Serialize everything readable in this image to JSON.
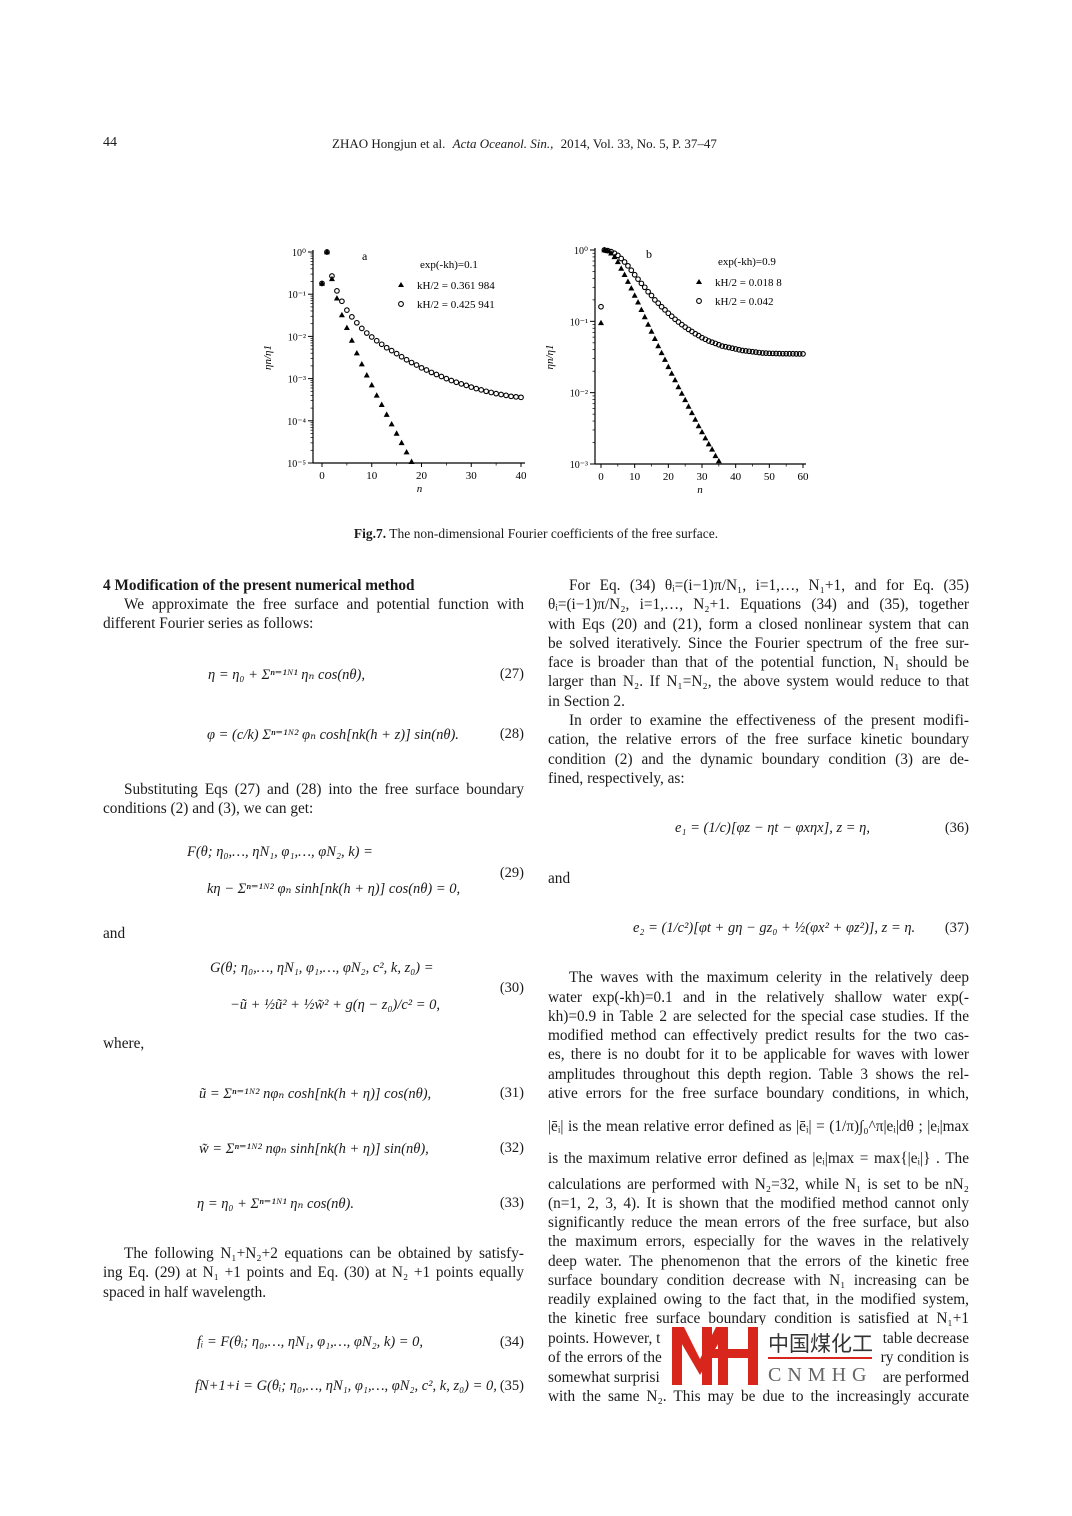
{
  "header": {
    "page_number": "44",
    "running_title": "ZHAO Hongjun et al.",
    "journal": "Acta Oceanol. Sin.,",
    "citation": "2014, Vol. 33, No. 5, P. 37–47"
  },
  "figure": {
    "label": "Fig.7.",
    "caption": "The non-dimensional Fourier coefficients of the free surface."
  },
  "chart_data": [
    {
      "type": "scatter",
      "panel_label": "a",
      "title": "exp(-kh)=0.1",
      "xlabel": "n",
      "ylabel": "ηn/η1",
      "xlim": [
        0,
        40
      ],
      "ylim": [
        1e-05,
        1
      ],
      "y_scale": "log",
      "x_ticks": [
        "0",
        "10",
        "20",
        "30",
        "40"
      ],
      "y_ticks": [
        "10⁰",
        "10⁻¹",
        "10⁻²",
        "10⁻³",
        "10⁻⁴",
        "10⁻⁵"
      ],
      "legend_placement": "top-right",
      "grid": false,
      "series": [
        {
          "name": "kH/2 = 0.361 984",
          "marker": "filled-triangle",
          "x": [
            0,
            1,
            2,
            3,
            4,
            5,
            6,
            7,
            8,
            9,
            10,
            11,
            12,
            13,
            14,
            15,
            16,
            17,
            18
          ],
          "y": [
            0.18,
            1,
            0.23,
            0.08,
            0.032,
            0.016,
            0.008,
            0.004,
            0.0022,
            0.0012,
            0.0007,
            0.0004,
            0.00024,
            0.00014,
            8.3e-05,
            5e-05,
            3e-05,
            1.8e-05,
            1.07e-05
          ]
        },
        {
          "name": "kH/2 = 0.425 941",
          "marker": "open-circle",
          "x": [
            0,
            1,
            2,
            3,
            4,
            5,
            6,
            7,
            8,
            9,
            10,
            11,
            12,
            13,
            14,
            15,
            16,
            17,
            18,
            19,
            20,
            21,
            22,
            23,
            24,
            25,
            26,
            27,
            28,
            29,
            30,
            31,
            32,
            33,
            34,
            35,
            36,
            37,
            38,
            39,
            40
          ],
          "y": [
            0.18,
            1,
            0.27,
            0.12,
            0.068,
            0.042,
            0.029,
            0.021,
            0.0155,
            0.012,
            0.0097,
            0.0079,
            0.0065,
            0.0054,
            0.0046,
            0.0039,
            0.0033,
            0.0028,
            0.0024,
            0.0021,
            0.0018,
            0.0016,
            0.0014,
            0.00125,
            0.00112,
            0.001,
            0.0009,
            0.00082,
            0.00075,
            0.00069,
            0.00063,
            0.00058,
            0.00054,
            0.0005,
            0.00047,
            0.00044,
            0.00042,
            0.0004,
            0.00038,
            0.00037,
            0.00036
          ]
        }
      ]
    },
    {
      "type": "scatter",
      "panel_label": "b",
      "title": "exp(-kh)=0.9",
      "xlabel": "n",
      "ylabel": "ηn/η1",
      "xlim": [
        0,
        60
      ],
      "ylim": [
        0.001,
        1
      ],
      "y_scale": "log",
      "x_ticks": [
        "0",
        "10",
        "20",
        "30",
        "40",
        "50",
        "60"
      ],
      "y_ticks": [
        "10⁰",
        "10⁻¹",
        "10⁻²",
        "10⁻³"
      ],
      "legend_placement": "top-right",
      "grid": false,
      "series": [
        {
          "name": "kH/2 = 0.018 8",
          "marker": "filled-triangle",
          "x": [
            0,
            1,
            2,
            3,
            4,
            5,
            6,
            7,
            8,
            9,
            10,
            11,
            12,
            13,
            14,
            15,
            16,
            17,
            18,
            19,
            20,
            21,
            22,
            23,
            24,
            25,
            26,
            27,
            28,
            29,
            30,
            31,
            32,
            33,
            34,
            35
          ],
          "y": [
            0.095,
            1,
            0.97,
            0.9,
            0.8,
            0.68,
            0.55,
            0.45,
            0.36,
            0.29,
            0.23,
            0.185,
            0.145,
            0.115,
            0.09,
            0.072,
            0.057,
            0.045,
            0.036,
            0.029,
            0.023,
            0.0185,
            0.015,
            0.012,
            0.0097,
            0.0079,
            0.0064,
            0.0052,
            0.0042,
            0.0034,
            0.0028,
            0.0023,
            0.0019,
            0.0016,
            0.0013,
            0.0011
          ]
        },
        {
          "name": "kH/2 = 0.042",
          "marker": "open-circle",
          "x": [
            0,
            1,
            2,
            3,
            4,
            5,
            6,
            7,
            8,
            9,
            10,
            11,
            12,
            13,
            14,
            15,
            16,
            17,
            18,
            19,
            20,
            21,
            22,
            23,
            24,
            25,
            26,
            27,
            28,
            29,
            30,
            31,
            32,
            33,
            34,
            35,
            36,
            37,
            38,
            39,
            40,
            41,
            42,
            43,
            44,
            45,
            46,
            47,
            48,
            49,
            50,
            51,
            52,
            53,
            54,
            55,
            56,
            57,
            58,
            59,
            60
          ],
          "y": [
            0.16,
            1,
            0.98,
            0.95,
            0.9,
            0.84,
            0.76,
            0.68,
            0.6,
            0.52,
            0.45,
            0.39,
            0.34,
            0.3,
            0.26,
            0.23,
            0.2,
            0.18,
            0.16,
            0.145,
            0.13,
            0.118,
            0.107,
            0.098,
            0.09,
            0.083,
            0.077,
            0.072,
            0.067,
            0.063,
            0.059,
            0.056,
            0.053,
            0.051,
            0.049,
            0.047,
            0.045,
            0.044,
            0.043,
            0.042,
            0.041,
            0.04,
            0.039,
            0.0385,
            0.038,
            0.0375,
            0.037,
            0.0365,
            0.036,
            0.0358,
            0.0356,
            0.0355,
            0.0354,
            0.0353,
            0.0352,
            0.0352,
            0.0351,
            0.0351,
            0.035,
            0.035,
            0.035
          ]
        }
      ]
    }
  ],
  "left_column": {
    "heading": "4  Modification of the present numerical method",
    "p1": [
      "We approximate the free surface and potential function with",
      "different Fourier series as follows:"
    ],
    "eq27": "η = η₀ + Σⁿ⁼¹ᴺ¹ ηₙ cos(nθ),",
    "eq28": "φ = (c/k) Σⁿ⁼¹ᴺ² φₙ cosh[nk(h + z)] sin(nθ).",
    "p2": [
      "Substituting Eqs (27) and (28) into the free surface boundary",
      "conditions (2) and (3), we can get:"
    ],
    "eq29a": "F(θ; η₀,…, ηN₁, φ₁,…, φN₂, k) =",
    "eq29b": "kη − Σⁿ⁼¹ᴺ² φₙ sinh[nk(h + η)] cos(nθ) = 0,",
    "and1": "and",
    "eq30a": "G(θ; η₀,…, ηN₁, φ₁,…, φN₂, c², k, z₀) =",
    "eq30b": "−ũ + ½ũ² + ½w̃² + g(η − z₀)/c² = 0,",
    "where": "where,",
    "eq31": "ũ = Σⁿ⁼¹ᴺ² nφₙ cosh[nk(h + η)] cos(nθ),",
    "eq32": "w̃ = Σⁿ⁼¹ᴺ² nφₙ sinh[nk(h + η)] sin(nθ),",
    "eq33": "η = η₀ + Σⁿ⁼¹ᴺ¹ ηₙ cos(nθ).",
    "p3": [
      "The following N₁+N₂+2 equations can be obtained by satisfy-",
      "ing Eq. (29) at N₁ +1 points and Eq. (30) at N₂ +1 points equally",
      "spaced in half wavelength."
    ],
    "eq34": "fᵢ = F(θᵢ; η₀,…, ηN₁, φ₁,…, φN₂, k) = 0,",
    "eq35": "fN+1+i = G(θᵢ; η₀,…, ηN₁, φ₁,…, φN₂, c², k, z₀) = 0,",
    "eq_numbers": [
      "(27)",
      "(28)",
      "(29)",
      "(30)",
      "(31)",
      "(32)",
      "(33)",
      "(34)",
      "(35)"
    ]
  },
  "right_column": {
    "p1": [
      "For Eq. (34) θᵢ=(i−1)π/N₁, i=1,…, N₁+1, and for Eq. (35)",
      "θᵢ=(i−1)π/N₂, i=1,…, N₂+1. Equations (34) and (35), together",
      "with Eqs (20) and (21), form a closed nonlinear system that can",
      "be solved iteratively. Since the Fourier spectrum of the free sur-",
      "face is broader than that of the potential function, N₁ should be",
      "larger than N₂. If N₁=N₂, the above system would reduce to that",
      "in Section 2."
    ],
    "p2": [
      "In order to examine the effectiveness of the present modifi-",
      "cation, the relative errors of the free surface kinetic boundary",
      "condition (2) and the dynamic boundary condition (3) are de-",
      "fined, respectively, as:"
    ],
    "eq36": "e₁ = (1/c)[φz − ηt − φxηx],   z = η,",
    "and2": "and",
    "eq37": "e₂ = (1/c²)[φt + gη − gz₀ + ½(φx² + φz²)],   z = η.",
    "eq_numbers": [
      "(36)",
      "(37)"
    ],
    "p3": [
      "The waves with the maximum celerity in the relatively deep",
      "water exp(-kh)=0.1 and in the relatively shallow water exp(-",
      "kh)=0.9 in Table 2 are selected for the special case studies. If the",
      "modified method can effectively predict results for the two cas-",
      "es, there is no doubt for it to be applicable for waves with lower",
      "amplitudes throughout this depth region. Table 3 shows the rel-",
      "ative errors for the free surface boundary conditions, in which,",
      "|ēᵢ| is the mean relative error defined as |ēᵢ| = (1/π)∫₀^π|eᵢ|dθ ; |eᵢ|max",
      "is the maximum relative error defined as |eᵢ|max = max{|eᵢ|} . The",
      "calculations are performed with N₂=32, while N₁ is set to be nN₂",
      "(n=1, 2, 3, 4). It is shown that the modified method cannot only",
      "significantly reduce the mean errors of the free surface, but also",
      "the maximum errors, especially for the waves in the relatively",
      "deep water. The phenomenon that the errors of the kinetic free",
      "surface boundary condition decrease with N₁ increasing can be",
      "readily explained owing to the fact that, in the modified system,",
      "the kinetic free surface boundary condition is satisfied at N₁+1"
    ],
    "obscured": [
      {
        "left": "points. However, t",
        "right": "table decrease"
      },
      {
        "left": "of the errors of the",
        "right": "ry condition is"
      },
      {
        "left": "somewhat surprisi",
        "right": "are performed"
      }
    ],
    "last_line": "with the same N₂. This may be due to the increasingly accurate"
  },
  "watermark": {
    "logo_letters": "MH",
    "chinese": "中国煤化工",
    "latin": "CNMHG",
    "color": "#d9261c"
  }
}
